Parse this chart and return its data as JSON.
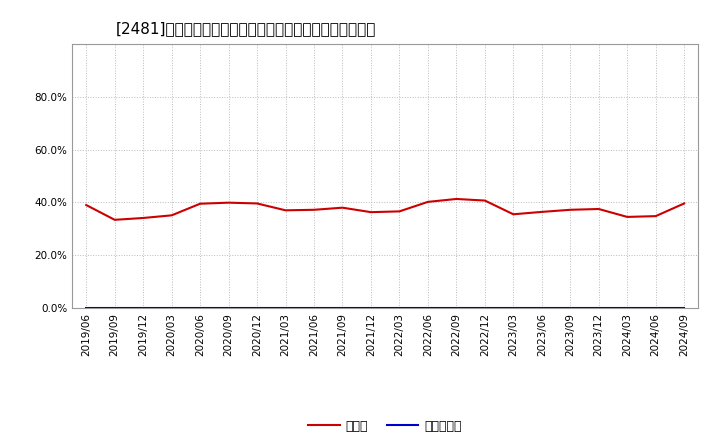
{
  "title": "[2481]　現預金、有利子負債の総資産に対する比率の推移",
  "x_labels": [
    "2019/06",
    "2019/09",
    "2019/12",
    "2020/03",
    "2020/06",
    "2020/09",
    "2020/12",
    "2021/03",
    "2021/06",
    "2021/09",
    "2021/12",
    "2022/03",
    "2022/06",
    "2022/09",
    "2022/12",
    "2023/03",
    "2023/06",
    "2023/09",
    "2023/12",
    "2024/03",
    "2024/06",
    "2024/09"
  ],
  "cash_values": [
    0.39,
    0.334,
    0.341,
    0.351,
    0.395,
    0.399,
    0.396,
    0.37,
    0.372,
    0.38,
    0.363,
    0.366,
    0.402,
    0.413,
    0.407,
    0.355,
    0.364,
    0.372,
    0.375,
    0.345,
    0.348,
    0.396
  ],
  "debt_values": [
    0.0,
    0.0,
    0.0,
    0.0,
    0.0,
    0.0,
    0.0,
    0.0,
    0.0,
    0.0,
    0.0,
    0.0,
    0.0,
    0.0,
    0.0,
    0.0,
    0.0,
    0.0,
    0.0,
    0.0,
    0.0,
    0.0
  ],
  "cash_color": "#cc0000",
  "debt_color": "#0000cc",
  "background_color": "#ffffff",
  "plot_bg_color": "#ffffff",
  "grid_color": "#bbbbbb",
  "legend_cash": "現預金",
  "legend_debt": "有利子負債",
  "ylim": [
    0.0,
    1.0
  ],
  "yticks": [
    0.0,
    0.2,
    0.4,
    0.6,
    0.8
  ],
  "title_fontsize": 11,
  "tick_fontsize": 7.5,
  "legend_fontsize": 9
}
